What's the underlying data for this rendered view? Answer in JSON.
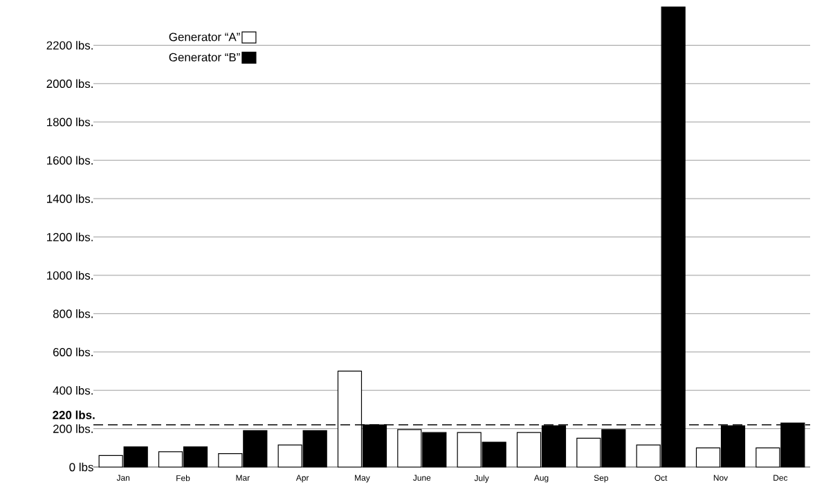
{
  "chart_data": {
    "type": "bar",
    "categories": [
      "Jan",
      "Feb",
      "Mar",
      "Apr",
      "May",
      "June",
      "July",
      "Aug",
      "Sep",
      "Oct",
      "Nov",
      "Dec"
    ],
    "series": [
      {
        "name": "Generator “A”",
        "color": "#ffffff",
        "values": [
          60,
          80,
          70,
          115,
          500,
          195,
          180,
          180,
          150,
          115,
          100,
          100
        ]
      },
      {
        "name": "Generator “B”",
        "color": "#000000",
        "values": [
          105,
          105,
          190,
          190,
          220,
          180,
          130,
          215,
          195,
          2400,
          215,
          230
        ]
      }
    ],
    "ylim": [
      0,
      2400
    ],
    "yticks": [
      {
        "value": 0,
        "label": "0 lbs"
      },
      {
        "value": 200,
        "label": "200 lbs."
      },
      {
        "value": 400,
        "label": "400 lbs."
      },
      {
        "value": 600,
        "label": "600 lbs."
      },
      {
        "value": 800,
        "label": "800 lbs."
      },
      {
        "value": 1000,
        "label": "1000 lbs."
      },
      {
        "value": 1200,
        "label": "1200 lbs."
      },
      {
        "value": 1400,
        "label": "1400 lbs."
      },
      {
        "value": 1600,
        "label": "1600 lbs."
      },
      {
        "value": 1800,
        "label": "1800 lbs."
      },
      {
        "value": 2000,
        "label": "2000 lbs."
      },
      {
        "value": 2200,
        "label": "2200 lbs."
      }
    ],
    "ref_lines": [
      {
        "axis": "y",
        "value": 220,
        "label": "220 lbs.",
        "line_style": "dashed",
        "color": "#000000"
      }
    ],
    "grid": "y",
    "legend": "top left"
  }
}
